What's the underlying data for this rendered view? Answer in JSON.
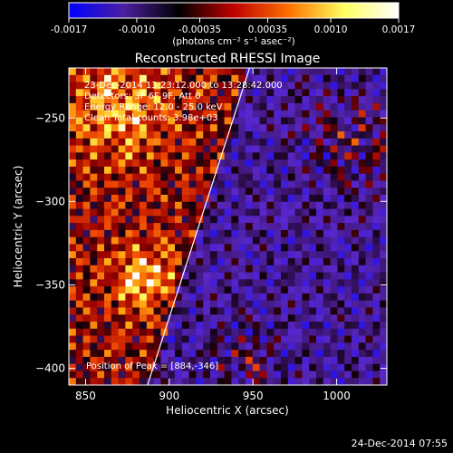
{
  "chart_data": {
    "type": "heatmap",
    "title": "Reconstructed RHESSI Image",
    "xlabel": "Heliocentric X (arcsec)",
    "ylabel": "Heliocentric Y (arcsec)",
    "xlim": [
      840,
      1030
    ],
    "ylim": [
      -410,
      -220
    ],
    "x_ticks": [
      850,
      900,
      950,
      1000
    ],
    "y_ticks": [
      -250,
      -300,
      -350,
      -400
    ],
    "colorbar": {
      "min": -0.0017,
      "max": 0.0017,
      "ticks": [
        "-0.0017",
        "-0.0010",
        "-0.00035",
        "0.00035",
        "0.0010",
        "0.0017"
      ],
      "unit_label": "(photons cm⁻² s⁻¹ asec⁻²)",
      "colors": [
        "#0000ff",
        "#4b1fa0",
        "#000000",
        "#c00000",
        "#ff7000",
        "#ffff60",
        "#ffffff"
      ]
    },
    "annotations": [
      "23-Dec-2014 13:23:12.000 to 13:28:42.000",
      "Detectors: 3F 6F 9F, Att 0",
      "Energy Range: 12.0 - 25.0 keV",
      "Clean     Total counts: 3.98e+03"
    ],
    "peak_label": "Position of Peak = [884,-346]",
    "peak": [
      884,
      -346
    ],
    "limb_line": [
      [
        887,
        -410
      ],
      [
        948,
        -220
      ]
    ]
  },
  "timestamp": "24-Dec-2014 07:55"
}
